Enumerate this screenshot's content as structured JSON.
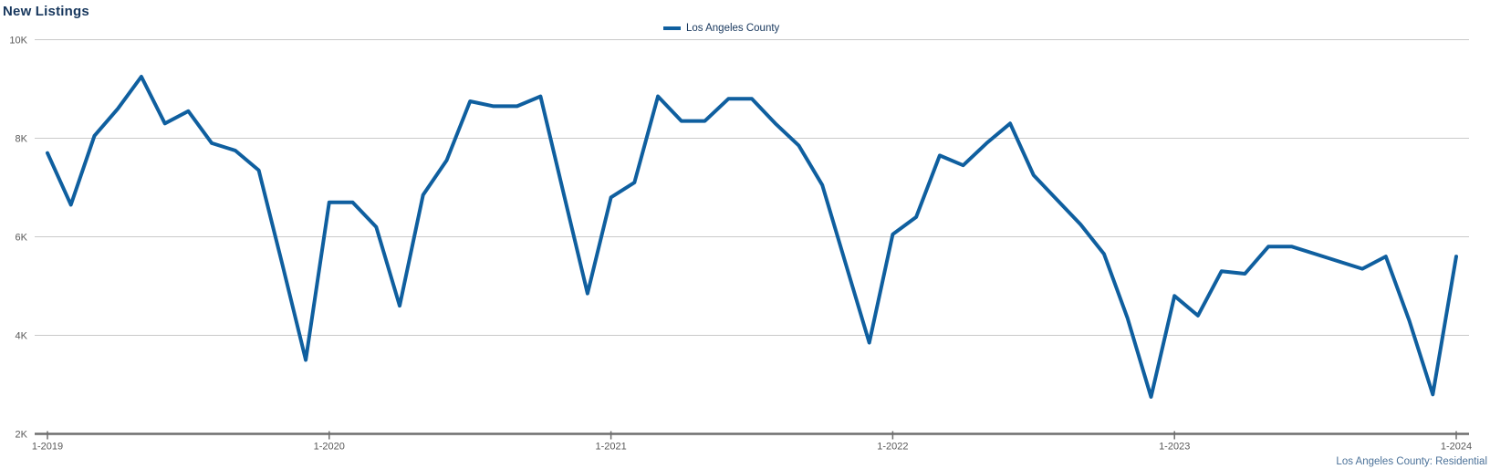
{
  "chart_data": {
    "type": "line",
    "title": "New Listings",
    "footnote": "Los Angeles County: Residential",
    "legend_position": "top-center",
    "grid": "horizontal",
    "ylim": [
      2000,
      10000
    ],
    "y_tick_step": 2000,
    "y_tick_labels": [
      "2K",
      "4K",
      "6K",
      "8K",
      "10K"
    ],
    "x_tick_labels": [
      "1-2019",
      "1-2020",
      "1-2021",
      "1-2022",
      "1-2023",
      "1-2024"
    ],
    "x": [
      "1-2019",
      "2-2019",
      "3-2019",
      "4-2019",
      "5-2019",
      "6-2019",
      "7-2019",
      "8-2019",
      "9-2019",
      "10-2019",
      "11-2019",
      "12-2019",
      "1-2020",
      "2-2020",
      "3-2020",
      "4-2020",
      "5-2020",
      "6-2020",
      "7-2020",
      "8-2020",
      "9-2020",
      "10-2020",
      "11-2020",
      "12-2020",
      "1-2021",
      "2-2021",
      "3-2021",
      "4-2021",
      "5-2021",
      "6-2021",
      "7-2021",
      "8-2021",
      "9-2021",
      "10-2021",
      "11-2021",
      "12-2021",
      "1-2022",
      "2-2022",
      "3-2022",
      "4-2022",
      "5-2022",
      "6-2022",
      "7-2022",
      "8-2022",
      "9-2022",
      "10-2022",
      "11-2022",
      "12-2022",
      "1-2023",
      "2-2023",
      "3-2023",
      "4-2023",
      "5-2023",
      "6-2023",
      "7-2023",
      "8-2023",
      "9-2023",
      "10-2023",
      "11-2023",
      "12-2023",
      "1-2024"
    ],
    "series": [
      {
        "name": "Los Angeles County",
        "color": "#0F5F9F",
        "values": [
          7700,
          6650,
          8050,
          8600,
          9250,
          8300,
          8550,
          7900,
          7750,
          7350,
          5450,
          3500,
          6700,
          6700,
          6200,
          4600,
          6850,
          7550,
          8750,
          8650,
          8650,
          8850,
          6850,
          4850,
          6800,
          7100,
          8850,
          8350,
          8350,
          8800,
          8800,
          8300,
          7850,
          7050,
          5450,
          3850,
          6050,
          6400,
          7650,
          7450,
          7900,
          8300,
          7250,
          6750,
          6250,
          5650,
          4350,
          2750,
          4800,
          4400,
          5300,
          5250,
          5800,
          5800,
          5650,
          5500,
          5350,
          5600,
          4300,
          2800,
          5600
        ]
      }
    ],
    "colors": {
      "gridline": "#C9C9C9",
      "axis": "#6E6E6E",
      "tick_label": "#595959",
      "title": "#17375D",
      "footnote": "#4C7299"
    }
  }
}
